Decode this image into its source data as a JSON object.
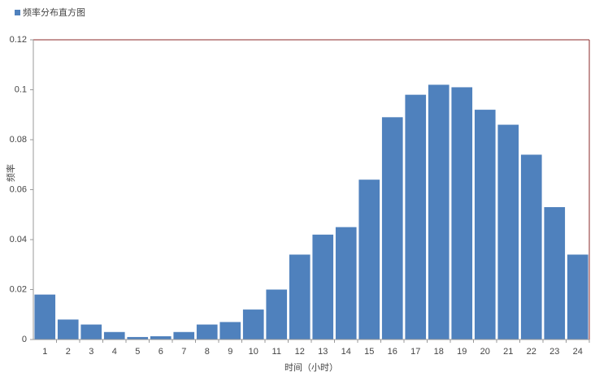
{
  "chart_data": {
    "type": "bar",
    "legend_label": "频率分布直方图",
    "x_label": "时间（小时）",
    "y_label": "频率",
    "categories": [
      "1",
      "2",
      "3",
      "4",
      "5",
      "6",
      "7",
      "8",
      "9",
      "10",
      "11",
      "12",
      "13",
      "14",
      "15",
      "16",
      "17",
      "18",
      "19",
      "20",
      "21",
      "22",
      "23",
      "24"
    ],
    "values": [
      0.018,
      0.008,
      0.006,
      0.003,
      0.001,
      0.0013,
      0.003,
      0.006,
      0.007,
      0.012,
      0.02,
      0.034,
      0.042,
      0.045,
      0.064,
      0.089,
      0.098,
      0.102,
      0.101,
      0.092,
      0.086,
      0.074,
      0.053,
      0.034
    ],
    "color": "#4f81bd",
    "ylim": [
      0,
      0.12
    ],
    "yticks": [
      0,
      0.02,
      0.04,
      0.06,
      0.08,
      0.1,
      0.12
    ],
    "legend": "top-left"
  }
}
